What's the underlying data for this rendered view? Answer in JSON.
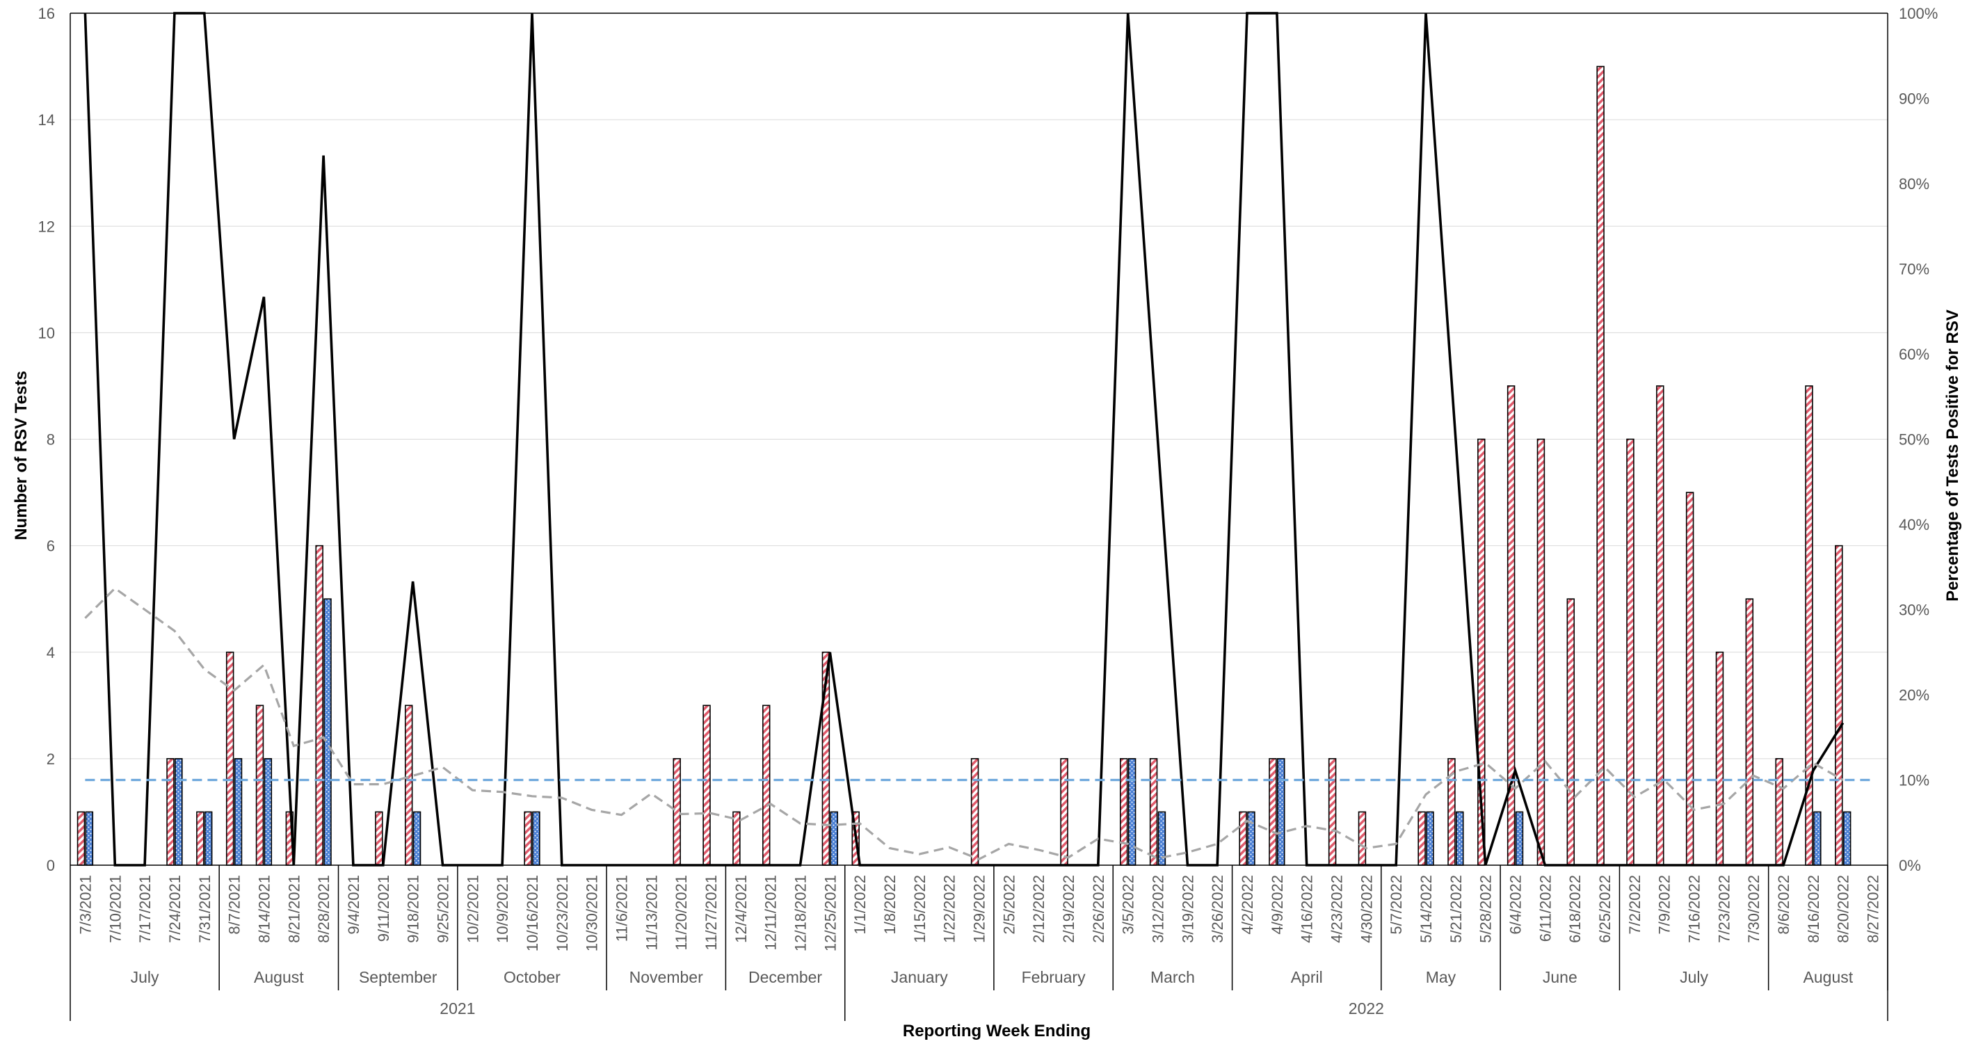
{
  "chart_data": {
    "type": "bar",
    "xlabel": "Reporting Week Ending",
    "ylabel": "Number of RSV Tests",
    "y2label": "Percentage of Tests Positive for RSV",
    "ylim": [
      0,
      16
    ],
    "y2lim": [
      0,
      100
    ],
    "yticks": [
      "0",
      "2",
      "4",
      "6",
      "8",
      "10",
      "12",
      "14",
      "16"
    ],
    "y2ticks": [
      "0%",
      "10%",
      "20%",
      "30%",
      "40%",
      "50%",
      "60%",
      "70%",
      "80%",
      "90%",
      "100%"
    ],
    "categories": [
      "7/3/2021",
      "7/10/2021",
      "7/17/2021",
      "7/24/2021",
      "7/31/2021",
      "8/7/2021",
      "8/14/2021",
      "8/21/2021",
      "8/28/2021",
      "9/4/2021",
      "9/11/2021",
      "9/18/2021",
      "9/25/2021",
      "10/2/2021",
      "10/9/2021",
      "10/16/2021",
      "10/23/2021",
      "10/30/2021",
      "11/6/2021",
      "11/13/2021",
      "11/20/2021",
      "11/27/2021",
      "12/4/2021",
      "12/11/2021",
      "12/18/2021",
      "12/25/2021",
      "1/1/2022",
      "1/8/2022",
      "1/15/2022",
      "1/22/2022",
      "1/29/2022",
      "2/5/2022",
      "2/12/2022",
      "2/19/2022",
      "2/26/2022",
      "3/5/2022",
      "3/12/2022",
      "3/19/2022",
      "3/26/2022",
      "4/2/2022",
      "4/9/2022",
      "4/16/2022",
      "4/23/2022",
      "4/30/2022",
      "5/7/2022",
      "5/14/2022",
      "5/21/2022",
      "5/28/2022",
      "6/4/2022",
      "6/11/2022",
      "6/18/2022",
      "6/25/2022",
      "7/2/2022",
      "7/9/2022",
      "7/16/2022",
      "7/23/2022",
      "7/30/2022",
      "8/6/2022",
      "8/16/2022",
      "8/20/2022",
      "8/27/2022"
    ],
    "months": [
      {
        "label": "July",
        "start": 0,
        "end": 4
      },
      {
        "label": "August",
        "start": 5,
        "end": 8
      },
      {
        "label": "September",
        "start": 9,
        "end": 12
      },
      {
        "label": "October",
        "start": 13,
        "end": 17
      },
      {
        "label": "November",
        "start": 18,
        "end": 21
      },
      {
        "label": "December",
        "start": 22,
        "end": 25
      },
      {
        "label": "January",
        "start": 26,
        "end": 30
      },
      {
        "label": "February",
        "start": 31,
        "end": 34
      },
      {
        "label": "March",
        "start": 35,
        "end": 38
      },
      {
        "label": "April",
        "start": 39,
        "end": 43
      },
      {
        "label": "May",
        "start": 44,
        "end": 47
      },
      {
        "label": "June",
        "start": 48,
        "end": 51
      },
      {
        "label": "July",
        "start": 52,
        "end": 56
      },
      {
        "label": "August",
        "start": 57,
        "end": 60
      }
    ],
    "years": [
      {
        "label": "2021",
        "start": 0,
        "end": 25
      },
      {
        "label": "2022",
        "start": 26,
        "end": 60
      }
    ],
    "series": [
      {
        "kind": "bar",
        "axis": "left",
        "color": "#e05a6b",
        "pattern": "hatch",
        "values": [
          1,
          0,
          0,
          2,
          1,
          4,
          3,
          1,
          6,
          0,
          1,
          3,
          0,
          0,
          0,
          1,
          0,
          0,
          0,
          0,
          2,
          3,
          1,
          3,
          0,
          4,
          1,
          0,
          0,
          0,
          2,
          0,
          0,
          2,
          0,
          2,
          2,
          0,
          0,
          1,
          2,
          0,
          2,
          1,
          0,
          1,
          2,
          8,
          9,
          8,
          5,
          15,
          8,
          9,
          7,
          4,
          5,
          2,
          9,
          6,
          0
        ]
      },
      {
        "kind": "bar",
        "axis": "left",
        "color": "#4a7fd4",
        "pattern": "dots",
        "values": [
          1,
          0,
          0,
          2,
          1,
          2,
          2,
          0,
          5,
          0,
          0,
          1,
          0,
          0,
          0,
          1,
          0,
          0,
          0,
          0,
          0,
          0,
          0,
          0,
          0,
          1,
          0,
          0,
          0,
          0,
          0,
          0,
          0,
          0,
          0,
          2,
          1,
          0,
          0,
          1,
          2,
          0,
          0,
          0,
          0,
          1,
          1,
          0,
          1,
          0,
          0,
          0,
          0,
          0,
          0,
          0,
          0,
          0,
          1,
          1,
          0
        ]
      },
      {
        "kind": "line",
        "axis": "right",
        "color": "#000000",
        "dash": "solid",
        "values": [
          100,
          0,
          0,
          100,
          100,
          50,
          66.7,
          0,
          83.3,
          0,
          0,
          33.3,
          0,
          0,
          0,
          100,
          0,
          0,
          0,
          0,
          0,
          0,
          0,
          0,
          0,
          25,
          0,
          0,
          0,
          0,
          0,
          0,
          0,
          0,
          0,
          100,
          50,
          0,
          0,
          100,
          100,
          0,
          0,
          0,
          0,
          100,
          50,
          0,
          11.1,
          0,
          0,
          0,
          0,
          0,
          0,
          0,
          0,
          0,
          11.1,
          16.7,
          null
        ]
      },
      {
        "kind": "line",
        "axis": "right",
        "color": "#a6a6a6",
        "dash": "dashed",
        "values": [
          29,
          32.5,
          30,
          27.5,
          23,
          20.5,
          23.5,
          14,
          15,
          9.5,
          9.5,
          10.5,
          11.5,
          8.8,
          8.6,
          8.1,
          7.9,
          6.5,
          5.9,
          8.4,
          6,
          6.1,
          5.3,
          7.2,
          4.9,
          4.7,
          4.9,
          2,
          1.3,
          2.1,
          0.7,
          2.5,
          1.8,
          0.9,
          3.1,
          2.5,
          0.8,
          1.5,
          2.5,
          5.2,
          3.7,
          4.6,
          4,
          2,
          2.5,
          8.3,
          11,
          12,
          9,
          12.2,
          8,
          11.5,
          8,
          10,
          6.5,
          7.2,
          10.5,
          9,
          12,
          10,
          null
        ]
      },
      {
        "kind": "line",
        "axis": "right",
        "color": "#6fa8dc",
        "dash": "dashed",
        "values": [
          10,
          10,
          10,
          10,
          10,
          10,
          10,
          10,
          10,
          10,
          10,
          10,
          10,
          10,
          10,
          10,
          10,
          10,
          10,
          10,
          10,
          10,
          10,
          10,
          10,
          10,
          10,
          10,
          10,
          10,
          10,
          10,
          10,
          10,
          10,
          10,
          10,
          10,
          10,
          10,
          10,
          10,
          10,
          10,
          10,
          10,
          10,
          10,
          10,
          10,
          10,
          10,
          10,
          10,
          10,
          10,
          10,
          10,
          10,
          10,
          10
        ]
      }
    ],
    "legend": "none",
    "grid": true
  }
}
